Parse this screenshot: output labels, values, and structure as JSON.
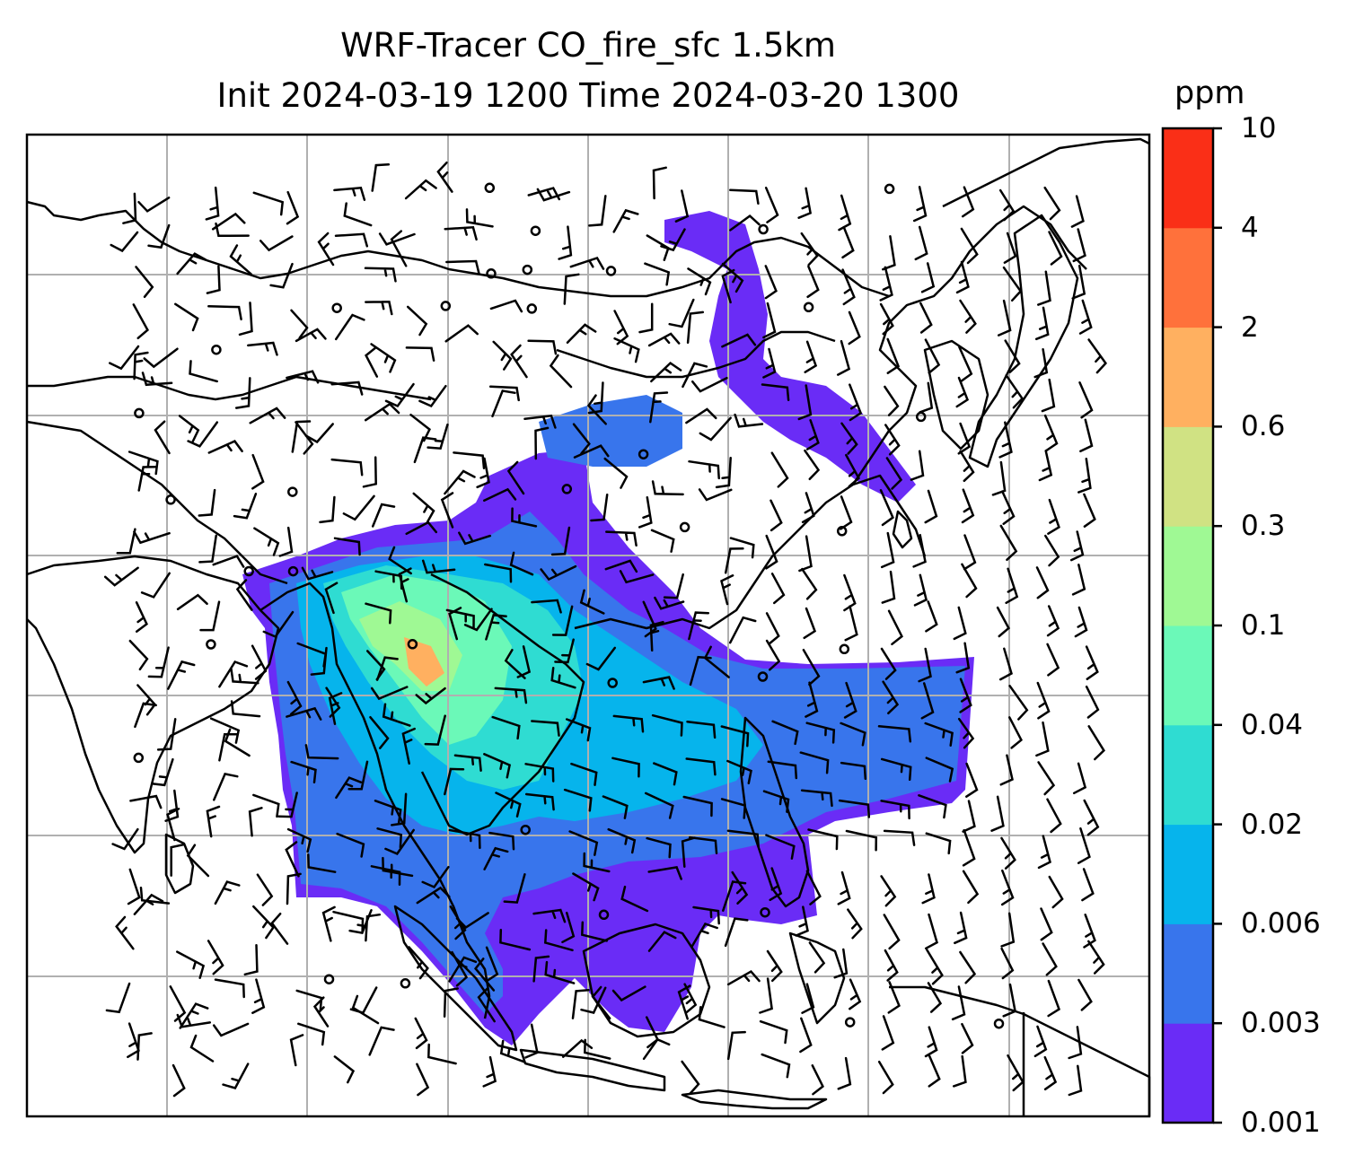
{
  "title": {
    "line1": "WRF-Tracer CO_fire_sfc 1.5km",
    "line2": "Init 2024-03-19 1200 Time 2024-03-20 1300"
  },
  "colorbar": {
    "units": "ppm",
    "levels": [
      "0.001",
      "0.003",
      "0.006",
      "0.02",
      "0.04",
      "0.1",
      "0.3",
      "0.6",
      "2",
      "4",
      "10"
    ],
    "colors": [
      "#6a2cf6",
      "#3875ec",
      "#06b4ec",
      "#2fdcd2",
      "#6bf9b8",
      "#9ff994",
      "#d0e283",
      "#ffb060",
      "#ff713b",
      "#fa2f17"
    ]
  },
  "map": {
    "plume_colors": {
      "faint": "#6a2cf6",
      "low": "#3875ec",
      "mid": "#06b4ec",
      "mid2": "#2fdcd2",
      "high": "#6bf9b8",
      "higher": "#9ff994",
      "peak": "#ffb060"
    },
    "coastline_color": "#000000",
    "grid_color": "#b0b0b0"
  }
}
